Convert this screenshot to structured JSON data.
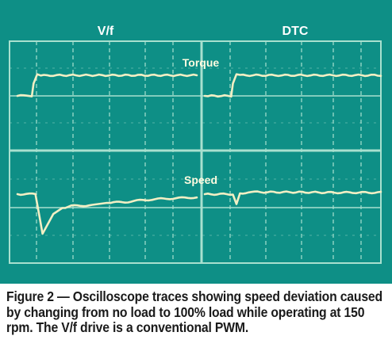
{
  "panels": {
    "left_title": "V/f",
    "right_title": "DTC"
  },
  "trace_labels": {
    "torque": "Torque",
    "speed": "Speed"
  },
  "caption": "Figure 2 — Oscilloscope traces showing speed deviation caused by changing from no load to 100% load while operating at 150 rpm. The V/f drive is a conventional PWM.",
  "colors": {
    "background": "#0e8f86",
    "grid": "#a8e0cf",
    "trace": "#f2efc4",
    "caption_text": "#1a1a1a"
  },
  "chart_data": [
    {
      "type": "line",
      "title": "V/f",
      "series": [
        {
          "name": "Torque",
          "x": [
            0,
            0.08,
            0.09,
            0.11,
            0.13,
            0.2,
            0.4,
            0.6,
            0.8,
            1.0
          ],
          "values": [
            0,
            0,
            0.6,
            1.05,
            0.98,
            1.0,
            1.0,
            1.0,
            1.0,
            1.0
          ]
        },
        {
          "name": "Speed",
          "x": [
            0,
            0.1,
            0.11,
            0.14,
            0.17,
            0.2,
            0.25,
            0.3,
            0.4,
            0.5,
            0.6,
            0.7,
            0.8,
            0.9,
            1.0
          ],
          "values": [
            0,
            0,
            -0.25,
            -1.0,
            -0.75,
            -0.5,
            -0.35,
            -0.3,
            -0.28,
            -0.22,
            -0.2,
            -0.15,
            -0.12,
            -0.1,
            -0.08
          ]
        }
      ]
    },
    {
      "type": "line",
      "title": "DTC",
      "series": [
        {
          "name": "Torque",
          "x": [
            0,
            0.15,
            0.16,
            0.18,
            0.2,
            0.4,
            0.6,
            0.8,
            1.0
          ],
          "values": [
            0,
            0,
            0.6,
            1.05,
            1.0,
            1.0,
            1.0,
            1.0,
            1.0
          ]
        },
        {
          "name": "Speed",
          "x": [
            0,
            0.16,
            0.18,
            0.2,
            0.25,
            0.3,
            0.5,
            0.7,
            1.0
          ],
          "values": [
            0,
            0,
            -0.25,
            0.02,
            0.05,
            0.05,
            0.05,
            0.04,
            0.04
          ]
        }
      ]
    }
  ]
}
